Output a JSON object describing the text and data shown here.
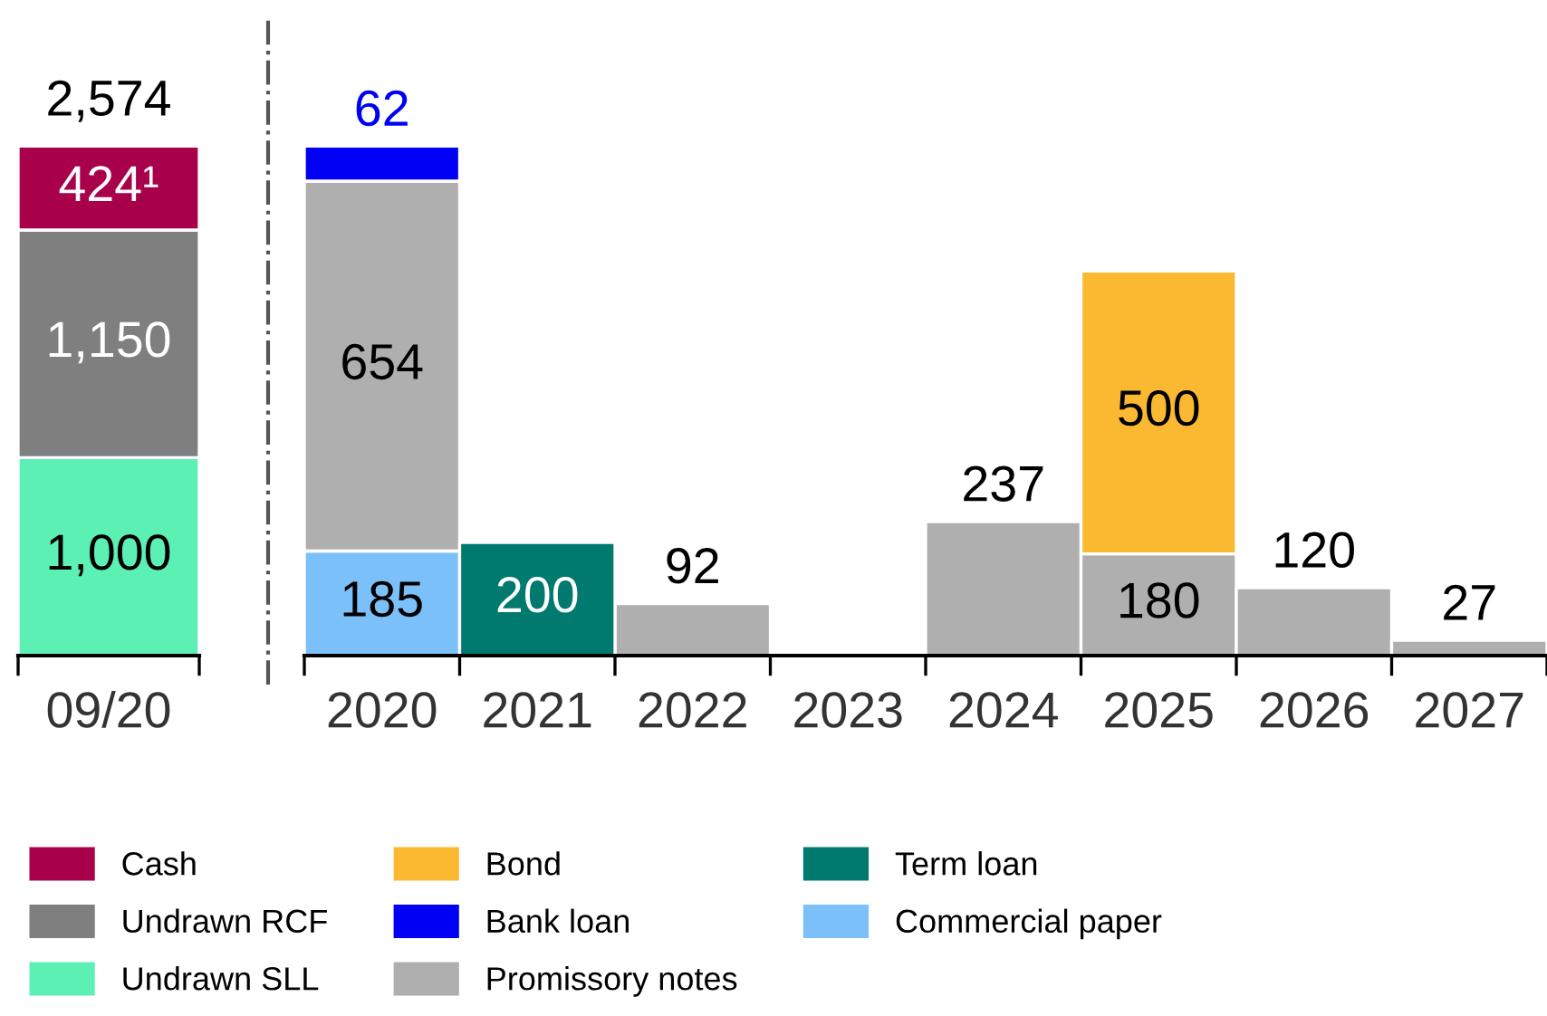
{
  "chart_data": [
    {
      "type": "bar",
      "stacked": true,
      "categories": [
        "09/20"
      ],
      "legend": "bottom",
      "totals": [
        "2,574"
      ],
      "series": [
        {
          "name": "Undrawn SLL",
          "color": "#5cf0b4",
          "values": [
            1000
          ],
          "value_labels": [
            "1,000"
          ]
        },
        {
          "name": "Undrawn RCF",
          "color": "#7f7f7f",
          "values": [
            1150
          ],
          "value_labels": [
            "1,150"
          ]
        },
        {
          "name": "Cash",
          "color": "#a8004a",
          "values": [
            424
          ],
          "value_labels": [
            "424¹"
          ]
        }
      ]
    },
    {
      "type": "bar",
      "stacked": true,
      "categories": [
        "2020",
        "2021",
        "2022",
        "2023",
        "2024",
        "2025",
        "2026",
        "2027"
      ],
      "legend": "bottom",
      "data_labels": true,
      "series": [
        {
          "name": "Commercial paper",
          "color": "#7cc0fa",
          "values": [
            185,
            null,
            null,
            null,
            null,
            null,
            null,
            null
          ]
        },
        {
          "name": "Promissory notes",
          "color": "#afafaf",
          "values": [
            654,
            null,
            92,
            null,
            237,
            180,
            120,
            27
          ]
        },
        {
          "name": "Bank loan",
          "color": "#0000f5",
          "values": [
            62,
            null,
            null,
            null,
            null,
            null,
            null,
            null
          ]
        },
        {
          "name": "Term loan",
          "color": "#007a6e",
          "values": [
            null,
            200,
            null,
            null,
            null,
            null,
            null,
            null
          ]
        },
        {
          "name": "Bond",
          "color": "#fbb932",
          "values": [
            null,
            null,
            null,
            null,
            null,
            500,
            null,
            null
          ]
        }
      ]
    }
  ]
}
